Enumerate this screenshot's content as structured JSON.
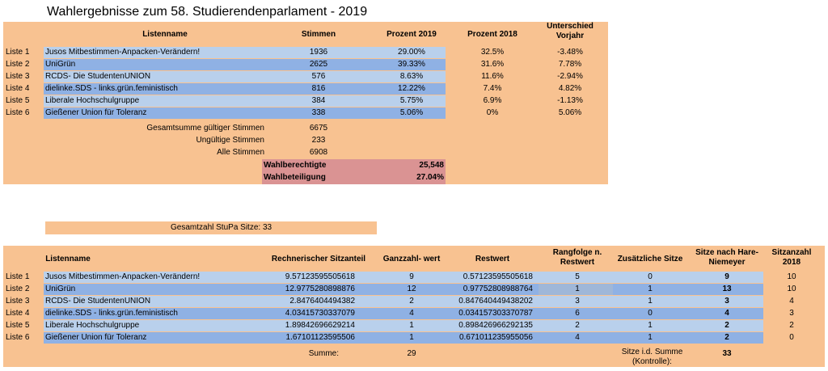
{
  "title": "Wahlergebnisse zum 58. Studierendenparlament - 2019",
  "table1": {
    "headers": {
      "listenname": "Listenname",
      "stimmen": "Stimmen",
      "prozent2019": "Prozent 2019",
      "prozent2018": "Prozent 2018",
      "unterschied": "Unterschied Vorjahr"
    },
    "rows": [
      {
        "liste": "Liste 1",
        "name": "Jusos Mitbestimmen-Anpacken-Verändern!",
        "stimmen": "1936",
        "p2019": "29.00%",
        "p2018": "32.5%",
        "diff": "-3.48%"
      },
      {
        "liste": "Liste 2",
        "name": "UniGrün",
        "stimmen": "2625",
        "p2019": "39.33%",
        "p2018": "31.6%",
        "diff": "7.78%"
      },
      {
        "liste": "Liste 3",
        "name": "RCDS- Die StudentenUNION",
        "stimmen": "576",
        "p2019": "8.63%",
        "p2018": "11.6%",
        "diff": "-2.94%"
      },
      {
        "liste": "Liste 4",
        "name": "dielinke.SDS - links.grün.feministisch",
        "stimmen": "816",
        "p2019": "12.22%",
        "p2018": "7.4%",
        "diff": "4.82%"
      },
      {
        "liste": "Liste 5",
        "name": "Liberale Hochschulgruppe",
        "stimmen": "384",
        "p2019": "5.75%",
        "p2018": "6.9%",
        "diff": "-1.13%"
      },
      {
        "liste": "Liste 6",
        "name": "Gießener Union für Toleranz",
        "stimmen": "338",
        "p2019": "5.06%",
        "p2018": "0%",
        "diff": "5.06%"
      }
    ],
    "totals": [
      {
        "label": "Gesamtsumme gültiger Stimmen",
        "value": "6675"
      },
      {
        "label": "Ungültige Stimmen",
        "value": "233"
      },
      {
        "label": "Alle Stimmen",
        "value": "6908"
      }
    ],
    "wahlberechtigte": {
      "label": "Wahlberechtigte",
      "value": "25,548"
    },
    "wahlbeteiligung": {
      "label": "Wahlbeteiligung",
      "value": "27.04%"
    }
  },
  "gesamtzahl": "Gesamtzahl StuPa Sitze: 33",
  "table2": {
    "headers": {
      "listenname": "Listenname",
      "sitzanteil": "Rechnerischer Sitzanteil",
      "ganzzahl": "Ganzzahl- wert",
      "restwert": "Restwert",
      "rangfolge": "Rangfolge  n. Restwert",
      "zusaetzlich": "Zusätzliche Sitze",
      "hare": "Sitze nach Hare-Niemeyer",
      "sitz2018": "Sitzanzahl 2018"
    },
    "rows": [
      {
        "liste": "Liste 1",
        "name": "Jusos Mitbestimmen-Anpacken-Verändern!",
        "anteil": "9.57123595505618",
        "ganz": "9",
        "rest": "0.57123595505618",
        "rang": "5",
        "zus": "0",
        "hare": "9",
        "s2018": "10"
      },
      {
        "liste": "Liste 2",
        "name": "UniGrün",
        "anteil": "12.9775280898876",
        "ganz": "12",
        "rest": "0.97752808988764",
        "rang": "1",
        "zus": "1",
        "hare": "13",
        "s2018": "10"
      },
      {
        "liste": "Liste 3",
        "name": "RCDS- Die StudentenUNION",
        "anteil": "2.8476404494382",
        "ganz": "2",
        "rest": "0.847640449438202",
        "rang": "3",
        "zus": "1",
        "hare": "3",
        "s2018": "4"
      },
      {
        "liste": "Liste 4",
        "name": "dielinke.SDS - links.grün.feministisch",
        "anteil": "4.03415730337079",
        "ganz": "4",
        "rest": "0.034157303370787",
        "rang": "6",
        "zus": "0",
        "hare": "4",
        "s2018": "3"
      },
      {
        "liste": "Liste 5",
        "name": "Liberale Hochschulgruppe",
        "anteil": "1.89842696629214",
        "ganz": "1",
        "rest": "0.898426966292135",
        "rang": "2",
        "zus": "1",
        "hare": "2",
        "s2018": "2"
      },
      {
        "liste": "Liste 6",
        "name": "Gießener Union für Toleranz",
        "anteil": "1.67101123595506",
        "ganz": "1",
        "rest": "0.671011235955056",
        "rang": "4",
        "zus": "1",
        "hare": "2",
        "s2018": "0"
      }
    ],
    "summe_label": "Summe:",
    "summe_value": "29",
    "kontrolle_label": "Sitze i.d. Summe (Kontrolle):",
    "kontrolle_value": "33"
  }
}
